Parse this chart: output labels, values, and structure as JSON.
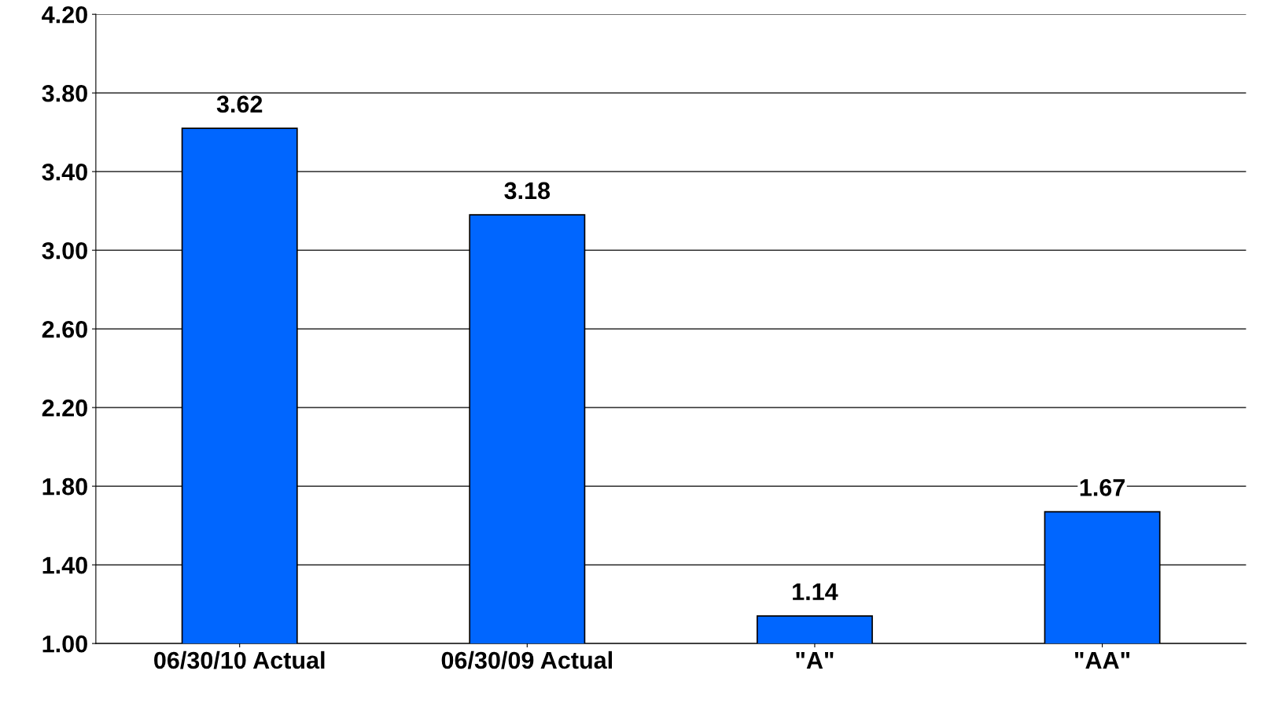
{
  "chart_data": {
    "type": "bar",
    "categories": [
      "06/30/10 Actual",
      "06/30/09 Actual",
      "\"A\"",
      "\"AA\""
    ],
    "values": [
      3.62,
      3.18,
      1.14,
      1.67
    ],
    "color": "#0066ff",
    "ylim": [
      1.0,
      4.2
    ],
    "yticks": [
      {
        "value": 1.0,
        "label": "1.00"
      },
      {
        "value": 1.4,
        "label": "1.40"
      },
      {
        "value": 1.8,
        "label": "1.80"
      },
      {
        "value": 2.2,
        "label": "2.20"
      },
      {
        "value": 2.6,
        "label": "2.60"
      },
      {
        "value": 3.0,
        "label": "3.00"
      },
      {
        "value": 3.4,
        "label": "3.40"
      },
      {
        "value": 3.8,
        "label": "3.80"
      },
      {
        "value": 4.2,
        "label": "4.20"
      }
    ],
    "grid": "y",
    "data_labels": true
  }
}
